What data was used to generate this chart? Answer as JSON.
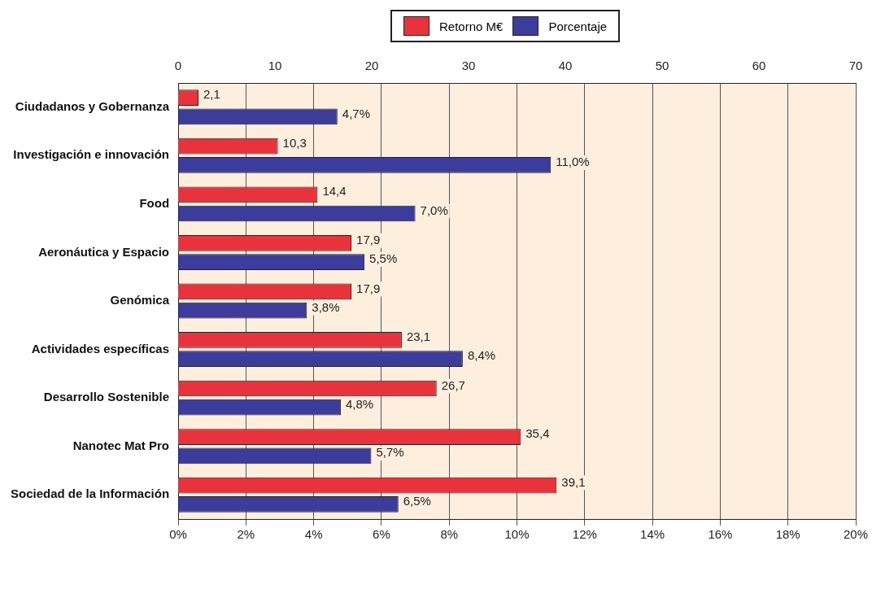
{
  "chart_data": {
    "type": "bar",
    "orientation": "horizontal",
    "categories": [
      "Ciudadanos y Gobernanza",
      "Investigación e innovación",
      "Food",
      "Aeronáutica y Espacio",
      "Genómica",
      "Actividades específicas",
      "Desarrollo Sostenible",
      "Nanotec Mat Pro",
      "Sociedad de la Información"
    ],
    "series": [
      {
        "name": "Retorno M€",
        "color": "#e8323c",
        "axis": "x2",
        "values": [
          2.1,
          10.3,
          14.4,
          17.9,
          17.9,
          23.1,
          26.7,
          35.4,
          39.1
        ],
        "value_labels": [
          "2,1",
          "10,3",
          "14,4",
          "17,9",
          "17,9",
          "23,1",
          "26,7",
          "35,4",
          "39,1"
        ]
      },
      {
        "name": "Porcentaje",
        "color": "#3c3c9c",
        "values": [
          4.7,
          11.0,
          7.0,
          5.5,
          3.8,
          8.4,
          4.8,
          5.7,
          6.5
        ],
        "value_labels": [
          "4,7%",
          "11,0%",
          "7,0%",
          "5,5%",
          "3,8%",
          "8,4%",
          "4,8%",
          "5,7%",
          "6,5%"
        ]
      }
    ],
    "xlim": [
      0,
      20
    ],
    "xticks": [
      {
        "value": 0,
        "label": "0%"
      },
      {
        "value": 2,
        "label": "2%"
      },
      {
        "value": 4,
        "label": "4%"
      },
      {
        "value": 6,
        "label": "6%"
      },
      {
        "value": 8,
        "label": "8%"
      },
      {
        "value": 10,
        "label": "10%"
      },
      {
        "value": 12,
        "label": "12%"
      },
      {
        "value": 14,
        "label": "14%"
      },
      {
        "value": 16,
        "label": "16%"
      },
      {
        "value": 18,
        "label": "18%"
      },
      {
        "value": 20,
        "label": "20%"
      }
    ],
    "x2lim": [
      0,
      70
    ],
    "x2ticks": [
      0,
      10,
      20,
      30,
      40,
      50,
      60,
      70
    ],
    "grid": "x",
    "legend": "top"
  }
}
